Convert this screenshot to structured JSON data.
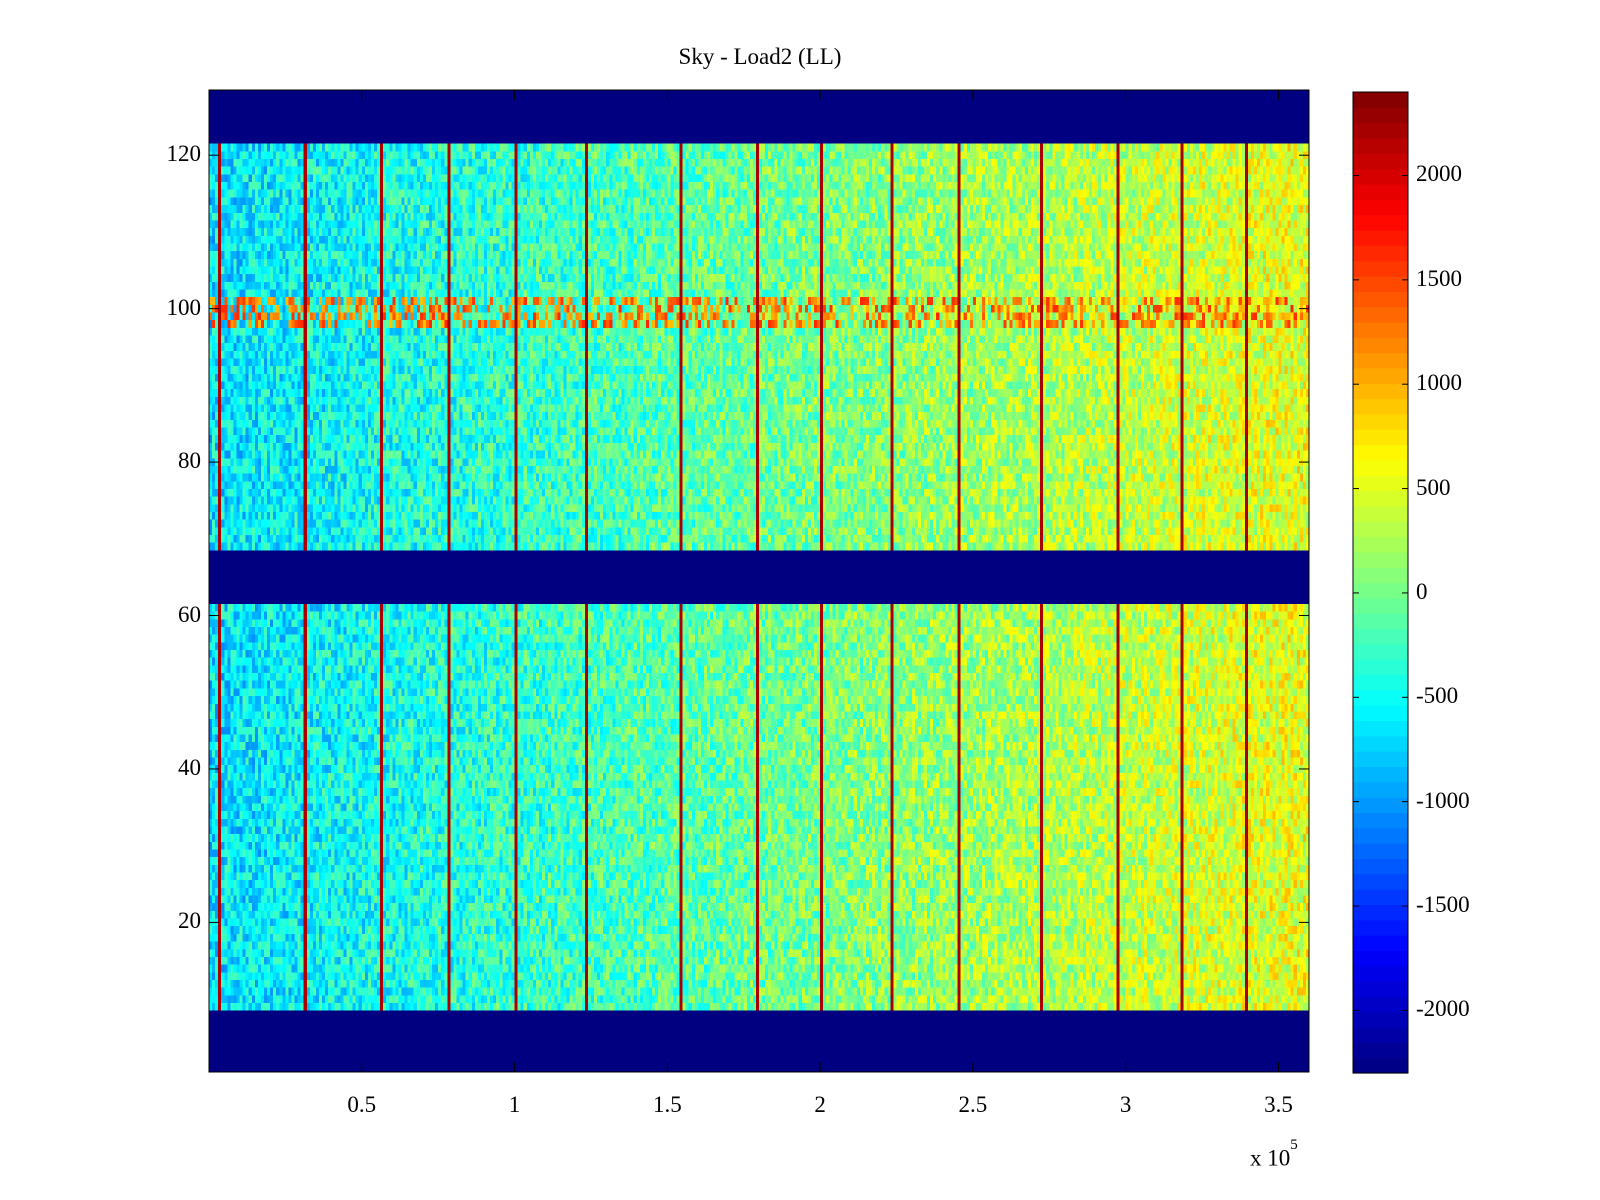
{
  "chart_data": {
    "type": "heatmap",
    "title": "Sky - Load2 (LL)",
    "xlabel": "",
    "ylabel": "",
    "x_multiplier_label": "x 10",
    "x_multiplier_exponent": "5",
    "xlim": [
      0,
      360000
    ],
    "ylim": [
      1,
      128
    ],
    "x_ticks": [
      50000,
      100000,
      150000,
      200000,
      250000,
      300000,
      350000
    ],
    "x_tick_labels": [
      "0.5",
      "1",
      "1.5",
      "2",
      "2.5",
      "3",
      "3.5"
    ],
    "y_ticks": [
      20,
      40,
      60,
      80,
      100,
      120
    ],
    "y_tick_labels": [
      "20",
      "40",
      "60",
      "80",
      "100",
      "120"
    ],
    "colorbar": {
      "colormap": "jet",
      "range": [
        -2300,
        2400
      ],
      "ticks": [
        -2000,
        -1500,
        -1000,
        -500,
        0,
        500,
        1000,
        1500,
        2000
      ],
      "tick_labels": [
        "-2000",
        "-1500",
        "-1000",
        "-500",
        "0",
        "500",
        "1000",
        "1500",
        "2000"
      ]
    },
    "masked_rows": [
      [
        1,
        8
      ],
      [
        62,
        68
      ],
      [
        122,
        128
      ]
    ],
    "masked_value": -2300,
    "baseline_trend": {
      "x": [
        0,
        360000
      ],
      "value": [
        -650,
        550
      ]
    },
    "hot_row_band": {
      "rows": [
        98,
        101
      ],
      "value": 1500
    },
    "vertical_spike_x": [
      3500,
      31000,
      56000,
      78000,
      100000,
      123000,
      154000,
      179000,
      201000,
      224000,
      246000,
      273000,
      298000,
      319000,
      340000
    ],
    "vertical_spike_value": 2200
  },
  "colors": {
    "axes_border": "#000000",
    "background": "#ffffff"
  }
}
